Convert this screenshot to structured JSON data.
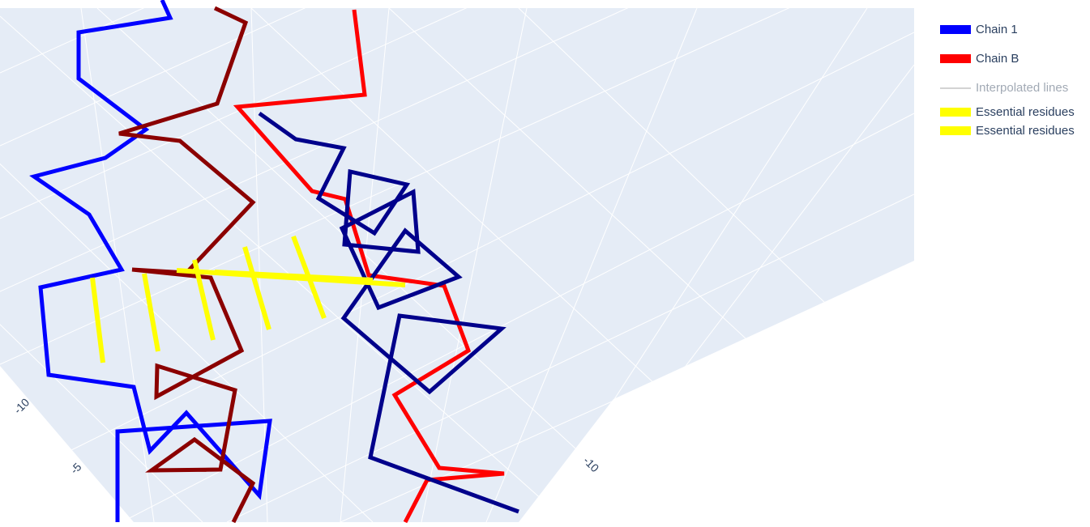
{
  "chart_data": {
    "type": "line",
    "title": "",
    "scene": {
      "background": "#e5ecf6",
      "grid": true,
      "gridcolor": "#ffffff",
      "legend_position": "right"
    },
    "axis_ticks": {
      "left": [
        "-10",
        "-5"
      ],
      "right": [
        "-10"
      ]
    },
    "series": [
      {
        "name": "Chain 1",
        "color": "#0000ff",
        "points": [
          [
            200,
            0
          ],
          [
            210,
            22
          ],
          [
            97,
            40
          ],
          [
            97,
            97
          ],
          [
            180,
            160
          ],
          [
            130,
            195
          ],
          [
            42,
            218
          ],
          [
            110,
            265
          ],
          [
            150,
            333
          ],
          [
            50,
            355
          ],
          [
            60,
            463
          ],
          [
            165,
            478
          ],
          [
            185,
            557
          ],
          [
            230,
            510
          ],
          [
            320,
            612
          ],
          [
            333,
            520
          ],
          [
            145,
            533
          ],
          [
            145,
            645
          ]
        ]
      },
      {
        "name": "",
        "color": "#8b0000",
        "points": [
          [
            265,
            10
          ],
          [
            303,
            28
          ],
          [
            268,
            128
          ],
          [
            147,
            165
          ],
          [
            222,
            174
          ],
          [
            312,
            250
          ],
          [
            230,
            337
          ],
          [
            163,
            333
          ],
          [
            260,
            343
          ],
          [
            298,
            433
          ],
          [
            193,
            490
          ],
          [
            194,
            452
          ],
          [
            290,
            482
          ],
          [
            272,
            580
          ],
          [
            187,
            581
          ],
          [
            240,
            543
          ],
          [
            312,
            597
          ],
          [
            288,
            645
          ]
        ]
      },
      {
        "name": "Chain B",
        "color": "#ff0000",
        "points": [
          [
            437,
            12
          ],
          [
            450,
            117
          ],
          [
            293,
            132
          ],
          [
            385,
            236
          ],
          [
            426,
            246
          ],
          [
            455,
            340
          ],
          [
            548,
            353
          ],
          [
            578,
            433
          ],
          [
            487,
            488
          ],
          [
            542,
            578
          ],
          [
            622,
            585
          ],
          [
            527,
            593
          ],
          [
            500,
            645
          ]
        ]
      },
      {
        "name": "",
        "color": "#00008b",
        "points": [
          [
            320,
            140
          ],
          [
            365,
            172
          ],
          [
            424,
            183
          ],
          [
            393,
            245
          ],
          [
            462,
            288
          ],
          [
            502,
            228
          ],
          [
            432,
            212
          ],
          [
            425,
            302
          ],
          [
            516,
            311
          ],
          [
            510,
            237
          ],
          [
            422,
            282
          ],
          [
            467,
            380
          ],
          [
            566,
            342
          ],
          [
            500,
            285
          ],
          [
            424,
            393
          ],
          [
            530,
            484
          ],
          [
            619,
            406
          ],
          [
            493,
            390
          ],
          [
            457,
            565
          ],
          [
            640,
            632
          ]
        ]
      },
      {
        "name": "Interpolated lines",
        "color": "#d3d3d3",
        "hidden": true,
        "points": []
      },
      {
        "name": "Essential residues",
        "color": "#ffff00",
        "segments": [
          [
            [
              114,
              343
            ],
            [
              127,
              448
            ]
          ],
          [
            [
              178,
              338
            ],
            [
              195,
              434
            ]
          ],
          [
            [
              240,
              321
            ],
            [
              263,
              420
            ]
          ],
          [
            [
              302,
              305
            ],
            [
              332,
              407
            ]
          ],
          [
            [
              362,
              292
            ],
            [
              400,
              393
            ]
          ],
          [
            [
              218,
              334
            ],
            [
              500,
              352
            ]
          ],
          [
            [
              265,
              336
            ],
            [
              460,
              346
            ]
          ]
        ]
      },
      {
        "name": "Essential residues",
        "color": "#ffff00",
        "segments": []
      }
    ]
  },
  "legend": {
    "items": [
      {
        "label": "Chain 1",
        "color": "#0000ff",
        "kind": "thick",
        "hidden": false
      },
      {
        "label": "Chain B",
        "color": "#ff0000",
        "kind": "thick",
        "hidden": false
      },
      {
        "label": "Interpolated lines",
        "color": "#d3d3d3",
        "kind": "thin",
        "hidden": true
      },
      {
        "label": "Essential residues",
        "color": "#ffff00",
        "kind": "thick",
        "hidden": false
      },
      {
        "label": "Essential residues",
        "color": "#ffff00",
        "kind": "thick",
        "hidden": false
      }
    ]
  }
}
